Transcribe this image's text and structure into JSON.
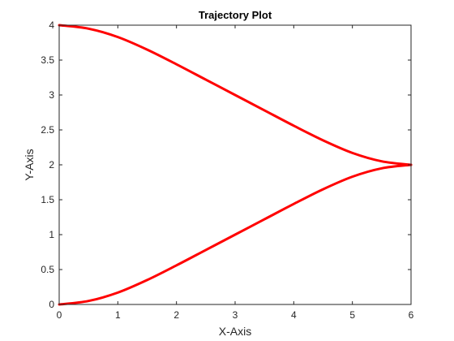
{
  "chart_data": {
    "type": "line",
    "title": "Trajectory Plot",
    "xlabel": "X-Axis",
    "ylabel": "Y-Axis",
    "xlim": [
      0,
      6
    ],
    "ylim": [
      0,
      4
    ],
    "xticks": [
      0,
      1,
      2,
      3,
      4,
      5,
      6
    ],
    "xtick_labels": [
      "0",
      "1",
      "2",
      "3",
      "4",
      "5",
      "6"
    ],
    "yticks": [
      0,
      0.5,
      1,
      1.5,
      2,
      2.5,
      3,
      3.5,
      4
    ],
    "ytick_labels": [
      "0",
      "0.5",
      "1",
      "1.5",
      "2",
      "2.5",
      "3",
      "3.5",
      "4"
    ],
    "grid": false,
    "box": true,
    "line_color": "#ff0000",
    "series": [
      {
        "x": [
          0,
          0.5,
          1,
          1.5,
          2,
          2.5,
          3,
          3.5,
          4,
          4.5,
          5,
          5.5,
          6
        ],
        "y": [
          4.0,
          3.95,
          3.83,
          3.65,
          3.44,
          3.22,
          3.0,
          2.78,
          2.56,
          2.35,
          2.17,
          2.05,
          2.0
        ]
      },
      {
        "x": [
          0,
          0.5,
          1,
          1.5,
          2,
          2.5,
          3,
          3.5,
          4,
          4.5,
          5,
          5.5,
          6
        ],
        "y": [
          0.0,
          0.05,
          0.17,
          0.35,
          0.56,
          0.78,
          1.0,
          1.22,
          1.44,
          1.65,
          1.83,
          1.95,
          2.0
        ]
      }
    ]
  }
}
